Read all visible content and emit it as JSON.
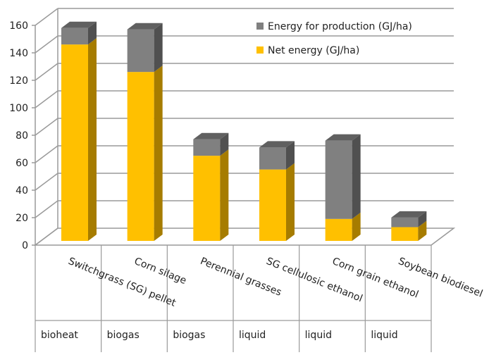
{
  "chart_data": {
    "type": "bar",
    "stacked": true,
    "style": "3d-column",
    "categories": [
      "Switchgrass (SG) pellet",
      "Corn silage",
      "Perennial grasses",
      "SG cellulosic ethanol",
      "Corn grain ethanol",
      "Soybean biodiesel"
    ],
    "groups": [
      "bioheat",
      "biogas",
      "biogas",
      "liquid",
      "liquid",
      "liquid"
    ],
    "series": [
      {
        "name": "Net energy (GJ/ha)",
        "values": [
          143,
          123,
          62,
          52,
          16,
          10
        ],
        "color": "#FFC000"
      },
      {
        "name": "Energy for production (GJ/ha)",
        "values": [
          12,
          31,
          12,
          16,
          57,
          7
        ],
        "color": "#808080"
      }
    ],
    "ylim": [
      0,
      160
    ],
    "yticks": [
      0,
      20,
      40,
      60,
      80,
      100,
      120,
      140,
      160
    ],
    "grid": true,
    "legend": "top-right"
  }
}
